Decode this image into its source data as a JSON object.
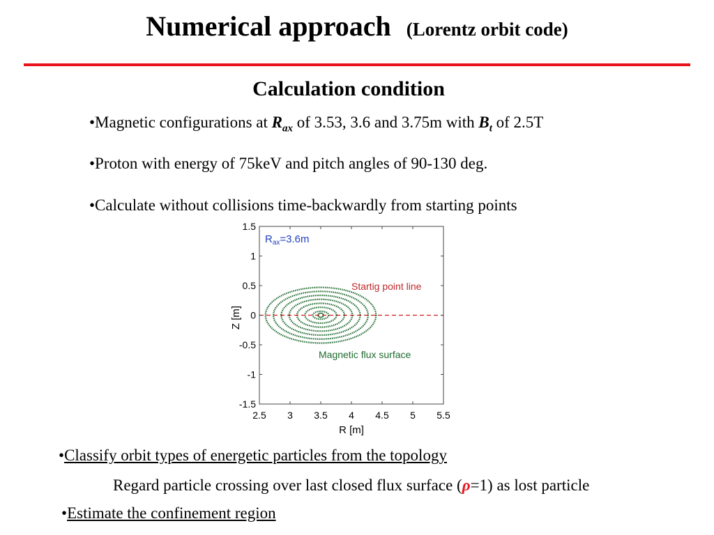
{
  "title": {
    "main": "Numerical approach",
    "sub": "(Lorentz orbit code)"
  },
  "subheading": "Calculation condition",
  "bullets": {
    "b1": {
      "prefix": "•Magnetic configurations at ",
      "sym1": "R",
      "sub1": "ax",
      "mid": " of 3.53, 3.6 and 3.75m with ",
      "sym2": "B",
      "sub2": "t",
      "suffix": " of 2.5T"
    },
    "b2": "•Proton with energy of 75keV and pitch angles of 90-130 deg.",
    "b3": "•Calculate without collisions time-backwardly from starting points",
    "b4": {
      "dot": "•",
      "text": "Classify orbit types of energetic particles from the topology"
    },
    "b5": {
      "prefix": "Regard particle crossing over last closed flux surface (",
      "rho": "ρ",
      "suffix": "=1)  as lost particle"
    },
    "b6": {
      "dot": "•",
      "text": "Estimate the confinement region"
    }
  },
  "chart_data": {
    "type": "line",
    "xlabel": "R [m]",
    "ylabel": "Z [m]",
    "xlim": [
      2.5,
      5.5
    ],
    "ylim": [
      -1.5,
      1.5
    ],
    "xticks": [
      "2.5",
      "3",
      "3.5",
      "4",
      "4.5",
      "5",
      "5.5"
    ],
    "yticks": [
      "1.5",
      "1",
      "0.5",
      "0",
      "-0.5",
      "-1",
      "-1.5"
    ],
    "grid": false,
    "annotations": {
      "rax_label": "R",
      "rax_sub": "ax",
      "rax_value": "=3.6m",
      "start_line_label": "Startig point line",
      "flux_label": "Magnetic flux surface"
    },
    "start_line": {
      "z": 0,
      "x_from": 2.5,
      "x_to": 5.5
    },
    "flux_surfaces": {
      "center_r": 3.5,
      "center_z": 0,
      "outer_half_width": 0.9,
      "outer_half_height": 0.47,
      "count": 7
    },
    "colors": {
      "flux": "#1e6b2e",
      "start_line": "#d02020",
      "start_label": "#c0282a",
      "rax_label": "#1f3fbf",
      "flux_label": "#1e6b2e"
    }
  }
}
